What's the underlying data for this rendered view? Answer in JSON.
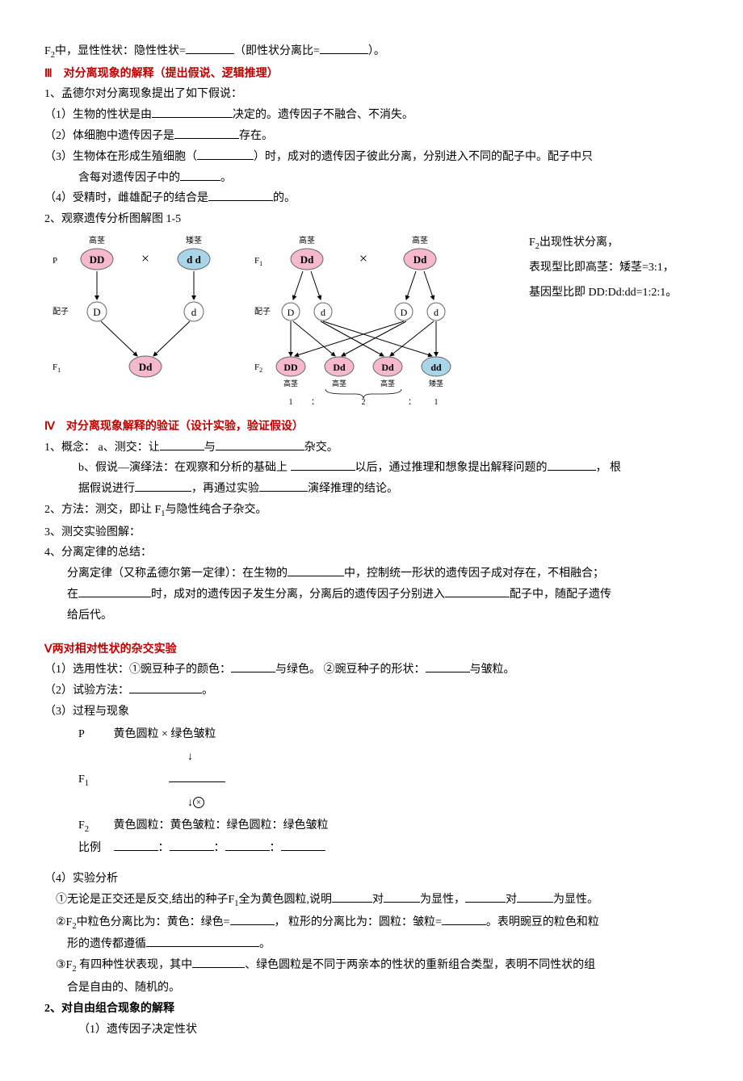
{
  "line_f2": {
    "prefix": "F",
    "sub": "2",
    "mid": "中，显性性状：隐性性状=",
    "blank1_w": 60,
    "mid2": "（即性状分离比=",
    "blank2_w": 60,
    "end": "）。"
  },
  "sec3": {
    "heading": "Ⅲ　对分离现象的解释（提出假说、逻辑推理）",
    "l1": "1、孟德尔对分离现象提出了如下假说：",
    "l1_1a": "（1）生物的性状是由",
    "l1_1_blank_w": 100,
    "l1_1b": "决定的。遗传因子不融合、不消失。",
    "l1_2a": "（2）体细胞中遗传因子是",
    "l1_2_blank_w": 80,
    "l1_2b": "存在。",
    "l1_3a": "（3）生物体在形成生殖细胞（",
    "l1_3_blank1_w": 70,
    "l1_3b": "）时，成对的遗传因子彼此分离，分别进入不同的配子中。配子中只",
    "l1_3c": "含每对遗传因子中的",
    "l1_3_blank2_w": 50,
    "l1_3d": "。",
    "l1_4a": "（4）受精时，雌雄配子的结合是",
    "l1_4_blank_w": 80,
    "l1_4b": "的。",
    "l2": "2、观察遗传分析图解图 1-5"
  },
  "diagram": {
    "colors": {
      "pink": "#f5b8cc",
      "blue": "#a8d5e8",
      "node_stroke": "#666666",
      "arrow": "#000000",
      "text": "#000000"
    },
    "left": {
      "label_P": "P",
      "label_pz": "配子",
      "label_F1": "F",
      "label_F1sub": "1",
      "tall": "高茎",
      "short": "矮茎",
      "DD": "DD",
      "dd": "d d",
      "D": "D",
      "d": "d",
      "Dd": "Dd",
      "cross": "×"
    },
    "right": {
      "label_F1": "F",
      "label_F1sub": "1",
      "label_pz": "配子",
      "label_F2": "F",
      "label_F2sub": "2",
      "tall": "高茎",
      "short": "矮茎",
      "Dd": "Dd",
      "D": "D",
      "d": "d",
      "DD": "DD",
      "dd": "dd",
      "cross": "×",
      "ratio_1": "1",
      "ratio_2": "2",
      "colon": "："
    },
    "notes": {
      "n1a": "F",
      "n1sub": "2",
      "n1b": "出现性状分离，",
      "n2": "表现型比即高茎：矮茎=3:1，",
      "n3": "基因型比即 DD:Dd:dd=1:2:1。"
    }
  },
  "sec4": {
    "heading": "Ⅳ　对分离现象解释的验证（设计实验，验证假设）",
    "l1a": "1、概念：  a、测交：让",
    "l1_blank1_w": 55,
    "l1b": "与",
    "l1_blank2_w": 110,
    "l1c": "杂交。",
    "l1d": "b、假说—演绎法：在观察和分析的基础上 ",
    "l1_blank3_w": 80,
    "l1e": "以后，通过推理和想象提出解释问题的",
    "l1_blank4_w": 60,
    "l1f": "，  根",
    "l1g": "据假说进行",
    "l1_blank5_w": 70,
    "l1h": "，再通过实验",
    "l1_blank6_w": 60,
    "l1i": "演绎推理的结论。",
    "l2a": "2、方法：测交，即让 F",
    "l2sub": "1",
    "l2b": "与隐性纯合子杂交。",
    "l3": "3、测交实验图解：",
    "l4": "4、分离定律的总结：",
    "l4a": "分离定律（又称孟德尔第一定律）：在生物的",
    "l4_blank1_w": 70,
    "l4b": "中，控制统一形状的遗传因子成对存在，不相融合；",
    "l4c": "在",
    "l4_blank2_w": 90,
    "l4d": "时，成对的遗传因子发生分离，分离后的遗传因子分别进入",
    "l4_blank3_w": 80,
    "l4e": "配子中，随配子遗传",
    "l4f": "给后代。"
  },
  "sec5": {
    "heading": "Ⅴ两对相对性状的杂交实验",
    "l1a": "（1）选用性状：①豌豆种子的颜色：",
    "l1_blank1_w": 55,
    "l1b": "与绿色。  ②豌豆种子的形状：",
    "l1_blank2_w": 55,
    "l1c": "与皱粒。",
    "l2a": "（2）试验方法：",
    "l2_blank_w": 90,
    "l2b": "。",
    "l3": "（3）过程与现象",
    "p_label": "P",
    "p_text": "黄色圆粒  ×  绿色皱粒",
    "f1_label": "F",
    "f1_sub": "1",
    "f1_blank_w": 70,
    "f2_label": "F",
    "f2_sub": "2",
    "f2_text": "黄色圆粒：黄色皱粒：绿色圆粒：绿色皱粒",
    "ratio_label": "比例",
    "ratio_blank_w": 55,
    "colon": "：",
    "l4": "（4）实验分析",
    "l4_1a": "①无论是正交还是反交,结出的种子F",
    "l4_1sub": "1",
    "l4_1b": "全为黄色圆粒,说明",
    "l4_1_blank1_w": 50,
    "l4_1c": "对",
    "l4_1_blank2_w": 45,
    "l4_1d": "为显性，",
    "l4_1_blank3_w": 50,
    "l4_1e": "对",
    "l4_1_blank4_w": 45,
    "l4_1f": "为显性。",
    "l4_2a": "②F",
    "l4_2sub": "2",
    "l4_2b": "中粒色分离比为：黄色：绿色=",
    "l4_2_blank1_w": 55,
    "l4_2c": "，  粒形的分离比为：圆粒：皱粒=",
    "l4_2_blank2_w": 55,
    "l4_2d": "。表明豌豆的粒色和粒",
    "l4_2e": "形的遗传都遵循",
    "l4_2_blank3_w": 140,
    "l4_2f": "。",
    "l4_3a": "③F",
    "l4_3sub": "2",
    "l4_3b": " 有四种性状表现，其中",
    "l4_3_blank_w": 65,
    "l4_3c": "、绿色圆粒是不同于两亲本的性状的重新组合类型，表明不同性状的组",
    "l4_3d": "合是自由的、随机的。"
  },
  "sec6": {
    "heading": "2、对自由组合现象的解释",
    "l1": "（1）遗传因子决定性状"
  }
}
